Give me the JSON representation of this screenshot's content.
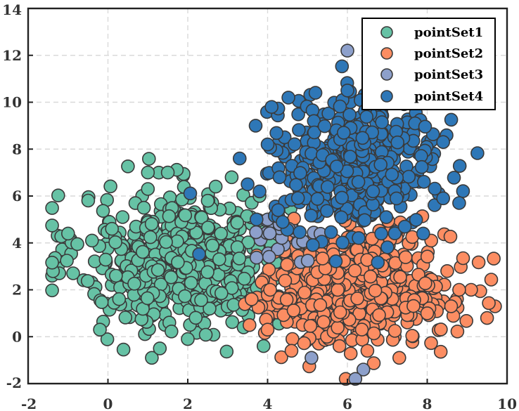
{
  "chart_data": {
    "type": "scatter",
    "title": "",
    "xlabel": "",
    "ylabel": "",
    "xlim": [
      -2,
      10
    ],
    "ylim": [
      -2,
      14
    ],
    "x_ticks": [
      "-2",
      "0",
      "2",
      "4",
      "6",
      "8",
      "10"
    ],
    "y_ticks": [
      "-2",
      "0",
      "2",
      "4",
      "6",
      "8",
      "10",
      "12",
      "14"
    ],
    "grid": true,
    "legend_position": "top-right",
    "series": [
      {
        "name": "pointSet1",
        "color": "#66c2a5",
        "cluster": {
          "center": [
            1.9,
            3.2
          ],
          "spread": [
            1.3,
            1.45
          ],
          "count": 560
        },
        "points": [
          [
            -1.0,
            4.4
          ],
          [
            -0.2,
            0.3
          ],
          [
            0.1,
            4.6
          ],
          [
            1.0,
            6.3
          ],
          [
            1.0,
            7.0
          ],
          [
            1.5,
            7.0
          ],
          [
            2.7,
            6.4
          ],
          [
            3.1,
            6.8
          ],
          [
            1.1,
            -0.9
          ],
          [
            1.3,
            -0.5
          ],
          [
            0.2,
            2.6
          ],
          [
            -0.4,
            4.1
          ],
          [
            3.8,
            6.0
          ],
          [
            3.9,
            -0.4
          ],
          [
            2.5,
            5.8
          ],
          [
            0.9,
            5.5
          ],
          [
            3.4,
            0.4
          ],
          [
            2.0,
            -0.1
          ]
        ]
      },
      {
        "name": "pointSet2",
        "color": "#fc8d62",
        "cluster": {
          "center": [
            6.2,
            2.1
          ],
          "spread": [
            1.2,
            1.2
          ],
          "count": 500
        },
        "points": [
          [
            9.5,
            0.8
          ],
          [
            9.1,
            2.0
          ],
          [
            8.8,
            2.0
          ],
          [
            8.5,
            2.8
          ],
          [
            8.1,
            4.1
          ],
          [
            7.3,
            -0.9
          ],
          [
            6.5,
            -0.6
          ],
          [
            5.8,
            -0.4
          ],
          [
            4.6,
            -0.6
          ],
          [
            4.0,
            0.3
          ],
          [
            8.0,
            1.0
          ],
          [
            3.6,
            1.6
          ],
          [
            8.6,
            1.3
          ]
        ]
      },
      {
        "name": "pointSet3",
        "color": "#8da0cb",
        "cluster": {
          "center": [
            4.6,
            4.4
          ],
          "spread": [
            0.4,
            0.45
          ],
          "count": 22
        },
        "points": [
          [
            6.0,
            12.2
          ],
          [
            5.1,
            -0.9
          ],
          [
            6.4,
            -1.4
          ],
          [
            6.2,
            -1.8
          ],
          [
            4.0,
            5.0
          ],
          [
            4.3,
            4.8
          ]
        ]
      },
      {
        "name": "pointSet4",
        "color": "#2e77b7",
        "cluster": {
          "center": [
            6.2,
            7.3
          ],
          "spread": [
            1.0,
            1.35
          ],
          "count": 480
        },
        "points": [
          [
            3.3,
            7.6
          ],
          [
            3.5,
            6.5
          ],
          [
            3.7,
            9.0
          ],
          [
            4.0,
            8.2
          ],
          [
            4.3,
            6.8
          ],
          [
            5.2,
            10.4
          ],
          [
            6.0,
            10.5
          ],
          [
            8.4,
            8.3
          ],
          [
            8.8,
            5.7
          ],
          [
            8.4,
            5.9
          ],
          [
            7.9,
            4.4
          ],
          [
            4.1,
            9.8
          ]
        ]
      }
    ]
  },
  "legend": {
    "items": [
      {
        "label": "pointSet1",
        "color": "#66c2a5"
      },
      {
        "label": "pointSet2",
        "color": "#fc8d62"
      },
      {
        "label": "pointSet3",
        "color": "#8da0cb"
      },
      {
        "label": "pointSet4",
        "color": "#2e77b7"
      }
    ]
  }
}
